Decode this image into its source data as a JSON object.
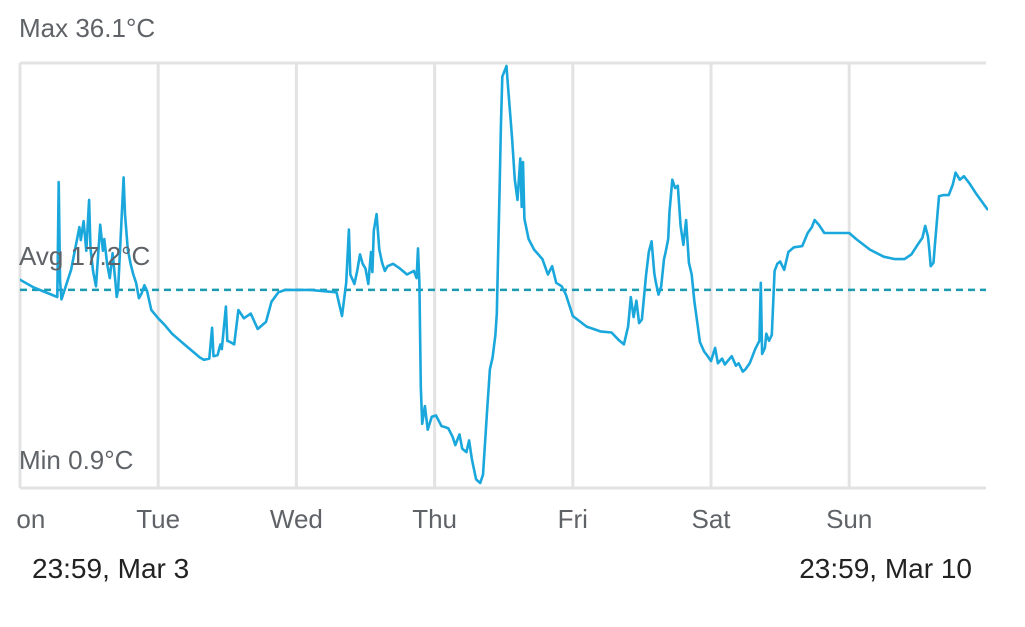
{
  "chart_data": {
    "type": "line",
    "title": "",
    "unit": "°C",
    "max_label": "Max 36.1°C",
    "avg_label": "Avg 17.2°C",
    "min_label": "Min 0.9°C",
    "ylim": [
      0.9,
      36.1
    ],
    "xlim": [
      0,
      7
    ],
    "avg_value": 17.2,
    "grid": true,
    "x_ticks": [
      {
        "label": "Mon",
        "x": 0
      },
      {
        "label": "Tue",
        "x": 1
      },
      {
        "label": "Wed",
        "x": 2
      },
      {
        "label": "Thu",
        "x": 3
      },
      {
        "label": "Fri",
        "x": 4
      },
      {
        "label": "Sat",
        "x": 5
      },
      {
        "label": "Sun",
        "x": 6
      }
    ],
    "series": [
      {
        "color": "#1aa7dc",
        "avg_color": "#1a9bb0",
        "points": [
          [
            -0.02,
            18.2
          ],
          [
            0.1,
            17.4
          ],
          [
            0.27,
            16.6
          ],
          [
            0.28,
            26.3
          ],
          [
            0.29,
            17.9
          ],
          [
            0.3,
            16.4
          ],
          [
            0.37,
            18.9
          ],
          [
            0.43,
            22.5
          ],
          [
            0.44,
            21.4
          ],
          [
            0.46,
            23.0
          ],
          [
            0.48,
            20.5
          ],
          [
            0.5,
            24.8
          ],
          [
            0.51,
            20.7
          ],
          [
            0.53,
            18.7
          ],
          [
            0.55,
            17.5
          ],
          [
            0.58,
            22.7
          ],
          [
            0.6,
            20.5
          ],
          [
            0.61,
            21.5
          ],
          [
            0.63,
            19.4
          ],
          [
            0.65,
            18.2
          ],
          [
            0.67,
            20.3
          ],
          [
            0.69,
            17.9
          ],
          [
            0.7,
            16.6
          ],
          [
            0.71,
            17.2
          ],
          [
            0.75,
            26.7
          ],
          [
            0.76,
            23.6
          ],
          [
            0.78,
            20.6
          ],
          [
            0.8,
            19.4
          ],
          [
            0.82,
            18.5
          ],
          [
            0.84,
            17.8
          ],
          [
            0.86,
            16.5
          ],
          [
            0.88,
            16.9
          ],
          [
            0.9,
            17.6
          ],
          [
            0.92,
            17.1
          ],
          [
            0.95,
            15.5
          ],
          [
            1.0,
            14.8
          ],
          [
            1.05,
            14.2
          ],
          [
            1.1,
            13.5
          ],
          [
            1.15,
            13.0
          ],
          [
            1.2,
            12.5
          ],
          [
            1.25,
            12.0
          ],
          [
            1.3,
            11.5
          ],
          [
            1.33,
            11.3
          ],
          [
            1.37,
            11.4
          ],
          [
            1.39,
            14.0
          ],
          [
            1.4,
            11.6
          ],
          [
            1.43,
            11.7
          ],
          [
            1.45,
            12.6
          ],
          [
            1.46,
            12.2
          ],
          [
            1.49,
            15.8
          ],
          [
            1.5,
            12.9
          ],
          [
            1.52,
            12.8
          ],
          [
            1.55,
            12.6
          ],
          [
            1.58,
            15.5
          ],
          [
            1.62,
            14.8
          ],
          [
            1.67,
            15.2
          ],
          [
            1.72,
            13.9
          ],
          [
            1.78,
            14.5
          ],
          [
            1.82,
            16.2
          ],
          [
            1.87,
            17.0
          ],
          [
            1.92,
            17.2
          ],
          [
            2.1,
            17.2
          ],
          [
            2.29,
            17.0
          ],
          [
            2.33,
            15.0
          ],
          [
            2.36,
            17.8
          ],
          [
            2.38,
            22.3
          ],
          [
            2.39,
            18.5
          ],
          [
            2.42,
            17.7
          ],
          [
            2.44,
            18.8
          ],
          [
            2.46,
            20.2
          ],
          [
            2.48,
            19.4
          ],
          [
            2.5,
            19.0
          ],
          [
            2.52,
            17.7
          ],
          [
            2.54,
            20.4
          ],
          [
            2.55,
            18.7
          ],
          [
            2.56,
            22.2
          ],
          [
            2.58,
            23.6
          ],
          [
            2.6,
            20.6
          ],
          [
            2.62,
            19.5
          ],
          [
            2.64,
            18.8
          ],
          [
            2.66,
            19.2
          ],
          [
            2.7,
            19.4
          ],
          [
            2.75,
            19.0
          ],
          [
            2.8,
            18.5
          ],
          [
            2.85,
            18.8
          ],
          [
            2.87,
            18.2
          ],
          [
            2.88,
            20.7
          ],
          [
            2.89,
            17.8
          ],
          [
            2.9,
            9.0
          ],
          [
            2.91,
            5.9
          ],
          [
            2.93,
            7.4
          ],
          [
            2.95,
            5.4
          ],
          [
            2.98,
            6.5
          ],
          [
            3.01,
            6.6
          ],
          [
            3.05,
            5.7
          ],
          [
            3.08,
            5.6
          ],
          [
            3.1,
            5.5
          ],
          [
            3.13,
            4.8
          ],
          [
            3.15,
            4.1
          ],
          [
            3.18,
            5.0
          ],
          [
            3.2,
            3.8
          ],
          [
            3.23,
            3.5
          ],
          [
            3.25,
            4.5
          ],
          [
            3.27,
            2.9
          ],
          [
            3.3,
            1.2
          ],
          [
            3.33,
            0.9
          ],
          [
            3.35,
            1.6
          ],
          [
            3.38,
            7.0
          ],
          [
            3.4,
            10.5
          ],
          [
            3.42,
            11.5
          ],
          [
            3.44,
            13.4
          ],
          [
            3.45,
            15.2
          ],
          [
            3.47,
            25.7
          ],
          [
            3.48,
            31.0
          ],
          [
            3.49,
            35.2
          ],
          [
            3.52,
            36.1
          ],
          [
            3.53,
            34.6
          ],
          [
            3.56,
            30.1
          ],
          [
            3.58,
            26.5
          ],
          [
            3.6,
            24.8
          ],
          [
            3.62,
            28.3
          ],
          [
            3.63,
            24.2
          ],
          [
            3.64,
            28.0
          ],
          [
            3.65,
            23.2
          ],
          [
            3.68,
            21.5
          ],
          [
            3.72,
            20.6
          ],
          [
            3.78,
            19.8
          ],
          [
            3.82,
            18.5
          ],
          [
            3.85,
            19.2
          ],
          [
            3.88,
            17.8
          ],
          [
            3.92,
            17.5
          ],
          [
            3.95,
            16.8
          ],
          [
            4.0,
            15.0
          ],
          [
            4.1,
            14.1
          ],
          [
            4.2,
            13.7
          ],
          [
            4.28,
            13.6
          ],
          [
            4.33,
            13.0
          ],
          [
            4.37,
            12.6
          ],
          [
            4.4,
            14.1
          ],
          [
            4.42,
            16.6
          ],
          [
            4.44,
            14.9
          ],
          [
            4.46,
            16.3
          ],
          [
            4.48,
            14.4
          ],
          [
            4.5,
            14.7
          ],
          [
            4.53,
            18.4
          ],
          [
            4.55,
            20.4
          ],
          [
            4.57,
            21.3
          ],
          [
            4.59,
            18.6
          ],
          [
            4.6,
            17.9
          ],
          [
            4.62,
            16.8
          ],
          [
            4.64,
            17.5
          ],
          [
            4.66,
            19.8
          ],
          [
            4.67,
            20.3
          ],
          [
            4.69,
            21.5
          ],
          [
            4.7,
            23.8
          ],
          [
            4.72,
            26.5
          ],
          [
            4.74,
            25.8
          ],
          [
            4.76,
            26.0
          ],
          [
            4.78,
            22.6
          ],
          [
            4.8,
            21.0
          ],
          [
            4.82,
            23.1
          ],
          [
            4.84,
            19.5
          ],
          [
            4.86,
            18.5
          ],
          [
            4.88,
            16.2
          ],
          [
            4.9,
            14.5
          ],
          [
            4.92,
            12.8
          ],
          [
            4.95,
            12.0
          ],
          [
            4.97,
            11.7
          ],
          [
            5.0,
            11.2
          ],
          [
            5.03,
            12.3
          ],
          [
            5.05,
            11.0
          ],
          [
            5.08,
            11.4
          ],
          [
            5.1,
            10.9
          ],
          [
            5.15,
            11.6
          ],
          [
            5.18,
            10.8
          ],
          [
            5.2,
            11.0
          ],
          [
            5.23,
            10.3
          ],
          [
            5.25,
            10.5
          ],
          [
            5.28,
            11.0
          ],
          [
            5.3,
            11.6
          ],
          [
            5.32,
            12.2
          ],
          [
            5.35,
            12.9
          ],
          [
            5.36,
            17.8
          ],
          [
            5.37,
            11.8
          ],
          [
            5.39,
            12.3
          ],
          [
            5.4,
            13.5
          ],
          [
            5.42,
            12.9
          ],
          [
            5.44,
            13.4
          ],
          [
            5.46,
            18.8
          ],
          [
            5.48,
            19.4
          ],
          [
            5.5,
            19.6
          ],
          [
            5.53,
            18.9
          ],
          [
            5.56,
            20.4
          ],
          [
            5.6,
            20.8
          ],
          [
            5.66,
            20.9
          ],
          [
            5.7,
            22.0
          ],
          [
            5.73,
            22.5
          ],
          [
            5.75,
            23.1
          ],
          [
            5.78,
            22.7
          ],
          [
            5.82,
            22.0
          ],
          [
            5.87,
            22.0
          ],
          [
            5.92,
            22.0
          ],
          [
            6.0,
            22.0
          ],
          [
            6.05,
            21.5
          ],
          [
            6.15,
            20.6
          ],
          [
            6.25,
            20.0
          ],
          [
            6.33,
            19.8
          ],
          [
            6.4,
            19.8
          ],
          [
            6.45,
            20.2
          ],
          [
            6.5,
            21.1
          ],
          [
            6.53,
            21.6
          ],
          [
            6.55,
            22.6
          ],
          [
            6.57,
            21.7
          ],
          [
            6.58,
            20.5
          ],
          [
            6.59,
            19.2
          ],
          [
            6.61,
            19.5
          ],
          [
            6.62,
            21.0
          ],
          [
            6.64,
            23.7
          ],
          [
            6.65,
            25.1
          ],
          [
            6.68,
            25.2
          ],
          [
            6.72,
            25.2
          ],
          [
            6.74,
            25.8
          ],
          [
            6.75,
            26.1
          ],
          [
            6.77,
            27.1
          ],
          [
            6.8,
            26.5
          ],
          [
            6.83,
            26.8
          ],
          [
            6.87,
            26.2
          ],
          [
            6.92,
            25.3
          ],
          [
            7.0,
            24.0
          ]
        ]
      }
    ]
  },
  "footer": {
    "range_start": "23:59, Mar 3",
    "range_end": "23:59, Mar 10"
  }
}
